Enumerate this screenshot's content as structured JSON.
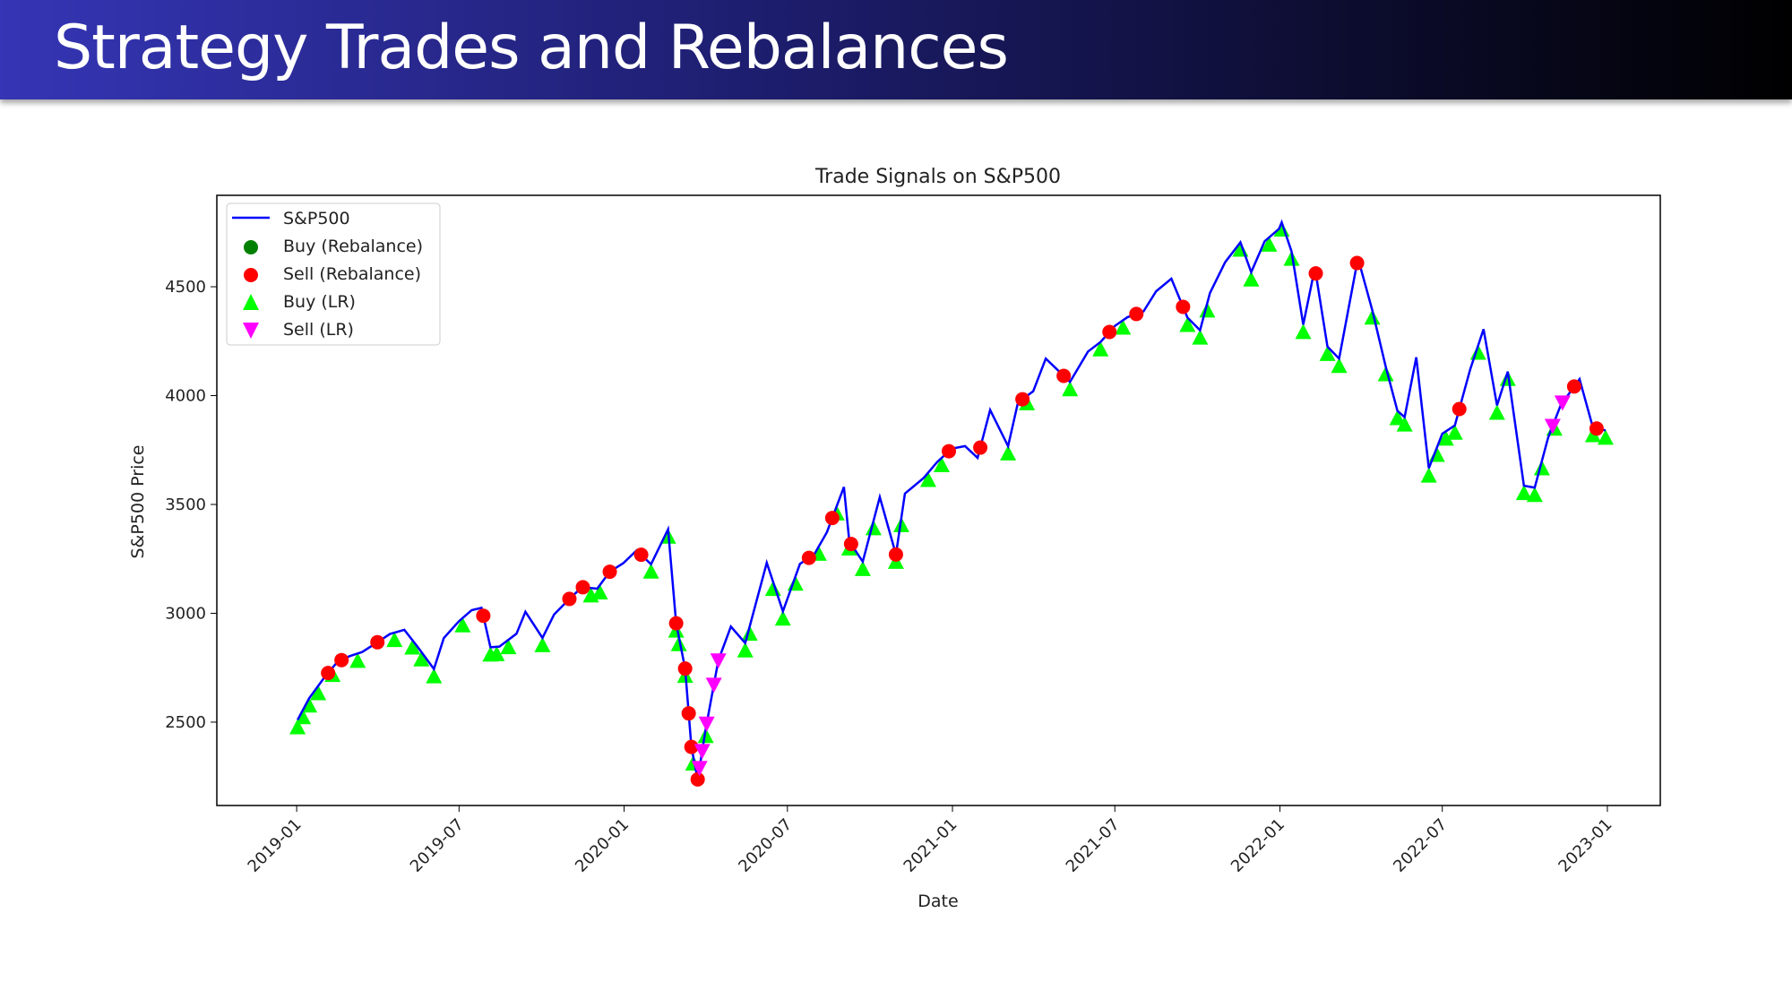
{
  "slide": {
    "title": "Strategy Trades and Rebalances"
  },
  "chart_data": {
    "type": "line",
    "title": "Trade Signals on S&P500",
    "xlabel": "Date",
    "ylabel": "S&P500 Price",
    "x_ticks": [
      "2019-01",
      "2019-07",
      "2020-01",
      "2020-07",
      "2021-01",
      "2021-07",
      "2022-01",
      "2022-07",
      "2023-01"
    ],
    "y_ticks": [
      2500,
      3000,
      3500,
      4000,
      4500
    ],
    "xlim": [
      "2018-10-04",
      "2023-03-01"
    ],
    "ylim": [
      2117,
      4920
    ],
    "grid": false,
    "legend_position": "top-left",
    "legend": [
      "S&P500",
      "Buy (Rebalance)",
      "Sell (Rebalance)",
      "Buy (LR)",
      "Sell (LR)"
    ],
    "colors": {
      "line": "#0000ff",
      "buy_rebalance": "#008000",
      "sell_rebalance": "#ff0000",
      "buy_lr": "#00ff00",
      "sell_lr": "#ff00ff"
    },
    "series": [
      {
        "name": "S&P500",
        "points": [
          [
            "2019-01-02",
            2510
          ],
          [
            "2019-01-15",
            2610
          ],
          [
            "2019-02-01",
            2706
          ],
          [
            "2019-02-15",
            2775
          ],
          [
            "2019-03-01",
            2803
          ],
          [
            "2019-03-15",
            2822
          ],
          [
            "2019-04-01",
            2867
          ],
          [
            "2019-04-15",
            2905
          ],
          [
            "2019-05-01",
            2924
          ],
          [
            "2019-05-15",
            2850
          ],
          [
            "2019-06-03",
            2744
          ],
          [
            "2019-06-14",
            2886
          ],
          [
            "2019-07-01",
            2964
          ],
          [
            "2019-07-15",
            3014
          ],
          [
            "2019-07-26",
            3025
          ],
          [
            "2019-08-05",
            2844
          ],
          [
            "2019-08-15",
            2847
          ],
          [
            "2019-09-03",
            2906
          ],
          [
            "2019-09-13",
            3007
          ],
          [
            "2019-10-02",
            2887
          ],
          [
            "2019-10-15",
            2995
          ],
          [
            "2019-11-01",
            3066
          ],
          [
            "2019-11-15",
            3120
          ],
          [
            "2019-12-02",
            3113
          ],
          [
            "2019-12-16",
            3191
          ],
          [
            "2019-12-31",
            3230
          ],
          [
            "2020-01-15",
            3289
          ],
          [
            "2020-01-31",
            3225
          ],
          [
            "2020-02-19",
            3386
          ],
          [
            "2020-02-28",
            2954
          ],
          [
            "2020-03-09",
            2746
          ],
          [
            "2020-03-16",
            2386
          ],
          [
            "2020-03-23",
            2237
          ],
          [
            "2020-04-01",
            2470
          ],
          [
            "2020-04-15",
            2783
          ],
          [
            "2020-04-29",
            2939
          ],
          [
            "2020-05-15",
            2863
          ],
          [
            "2020-06-08",
            3232
          ],
          [
            "2020-06-26",
            3009
          ],
          [
            "2020-07-15",
            3227
          ],
          [
            "2020-07-31",
            3271
          ],
          [
            "2020-08-14",
            3372
          ],
          [
            "2020-09-02",
            3580
          ],
          [
            "2020-09-08",
            3331
          ],
          [
            "2020-09-23",
            3237
          ],
          [
            "2020-10-12",
            3534
          ],
          [
            "2020-10-30",
            3270
          ],
          [
            "2020-11-09",
            3550
          ],
          [
            "2020-11-30",
            3622
          ],
          [
            "2020-12-15",
            3695
          ],
          [
            "2020-12-31",
            3756
          ],
          [
            "2021-01-15",
            3768
          ],
          [
            "2021-01-29",
            3714
          ],
          [
            "2021-02-12",
            3934
          ],
          [
            "2021-03-04",
            3768
          ],
          [
            "2021-03-15",
            3968
          ],
          [
            "2021-04-01",
            4020
          ],
          [
            "2021-04-15",
            4170
          ],
          [
            "2021-05-12",
            4063
          ],
          [
            "2021-06-01",
            4202
          ],
          [
            "2021-06-15",
            4246
          ],
          [
            "2021-07-01",
            4320
          ],
          [
            "2021-07-15",
            4360
          ],
          [
            "2021-08-02",
            4387
          ],
          [
            "2021-08-16",
            4479
          ],
          [
            "2021-09-02",
            4537
          ],
          [
            "2021-09-20",
            4358
          ],
          [
            "2021-10-04",
            4300
          ],
          [
            "2021-10-15",
            4471
          ],
          [
            "2021-11-01",
            4613
          ],
          [
            "2021-11-18",
            4704
          ],
          [
            "2021-11-30",
            4567
          ],
          [
            "2021-12-15",
            4709
          ],
          [
            "2021-12-31",
            4766
          ],
          [
            "2022-01-03",
            4796
          ],
          [
            "2022-01-14",
            4662
          ],
          [
            "2022-01-27",
            4326
          ],
          [
            "2022-02-09",
            4587
          ],
          [
            "2022-02-23",
            4225
          ],
          [
            "2022-03-08",
            4170
          ],
          [
            "2022-03-29",
            4631
          ],
          [
            "2022-04-14",
            4392
          ],
          [
            "2022-04-29",
            4132
          ],
          [
            "2022-05-12",
            3930
          ],
          [
            "2022-05-20",
            3901
          ],
          [
            "2022-06-02",
            4176
          ],
          [
            "2022-06-16",
            3666
          ],
          [
            "2022-07-01",
            3825
          ],
          [
            "2022-07-15",
            3863
          ],
          [
            "2022-08-01",
            4119
          ],
          [
            "2022-08-16",
            4305
          ],
          [
            "2022-08-31",
            3955
          ],
          [
            "2022-09-12",
            4110
          ],
          [
            "2022-09-30",
            3586
          ],
          [
            "2022-10-12",
            3577
          ],
          [
            "2022-10-27",
            3807
          ],
          [
            "2022-11-10",
            3956
          ],
          [
            "2022-12-01",
            4076
          ],
          [
            "2022-12-16",
            3852
          ],
          [
            "2022-12-30",
            3840
          ]
        ]
      },
      {
        "name": "Buy (Rebalance)",
        "dates": []
      },
      {
        "name": "Sell (Rebalance)",
        "dates": [
          "2019-02-05",
          "2019-02-20",
          "2019-04-01",
          "2019-07-28",
          "2019-11-01",
          "2019-11-16",
          "2019-12-16",
          "2020-01-20",
          "2020-02-28",
          "2020-03-09",
          "2020-03-13",
          "2020-03-16",
          "2020-03-23",
          "2020-07-25",
          "2020-08-20",
          "2020-09-10",
          "2020-10-30",
          "2020-12-28",
          "2021-02-01",
          "2021-03-20",
          "2021-05-05",
          "2021-06-25",
          "2021-07-25",
          "2021-09-15",
          "2022-02-10",
          "2022-03-28",
          "2022-07-20",
          "2022-11-25",
          "2022-12-20"
        ]
      },
      {
        "name": "Buy (LR)",
        "dates": [
          "2019-01-02",
          "2019-01-08",
          "2019-01-15",
          "2019-01-25",
          "2019-02-10",
          "2019-03-10",
          "2019-04-20",
          "2019-05-10",
          "2019-05-20",
          "2019-06-03",
          "2019-07-05",
          "2019-08-05",
          "2019-08-12",
          "2019-08-25",
          "2019-10-02",
          "2019-11-25",
          "2019-12-05",
          "2020-01-31",
          "2020-02-19",
          "2020-02-28",
          "2020-03-02",
          "2020-03-09",
          "2020-03-18",
          "2020-04-01",
          "2020-05-15",
          "2020-05-20",
          "2020-06-15",
          "2020-06-26",
          "2020-07-10",
          "2020-08-05",
          "2020-08-25",
          "2020-09-08",
          "2020-09-23",
          "2020-10-05",
          "2020-10-30",
          "2020-11-05",
          "2020-12-05",
          "2020-12-20",
          "2021-03-04",
          "2021-03-25",
          "2021-05-12",
          "2021-06-15",
          "2021-07-10",
          "2021-09-20",
          "2021-10-04",
          "2021-10-12",
          "2021-11-18",
          "2021-11-30",
          "2021-12-20",
          "2022-01-03",
          "2022-01-14",
          "2022-01-27",
          "2022-02-23",
          "2022-03-08",
          "2022-04-14",
          "2022-04-29",
          "2022-05-12",
          "2022-05-20",
          "2022-06-16",
          "2022-06-25",
          "2022-07-05",
          "2022-07-15",
          "2022-08-10",
          "2022-08-31",
          "2022-09-12",
          "2022-09-30",
          "2022-10-12",
          "2022-10-20",
          "2022-11-03",
          "2022-12-16",
          "2022-12-30"
        ]
      },
      {
        "name": "Sell (LR)",
        "dates": [
          "2020-03-25",
          "2020-03-28",
          "2020-04-02",
          "2020-04-10",
          "2020-04-15",
          "2022-11-01",
          "2022-11-12"
        ]
      }
    ]
  }
}
